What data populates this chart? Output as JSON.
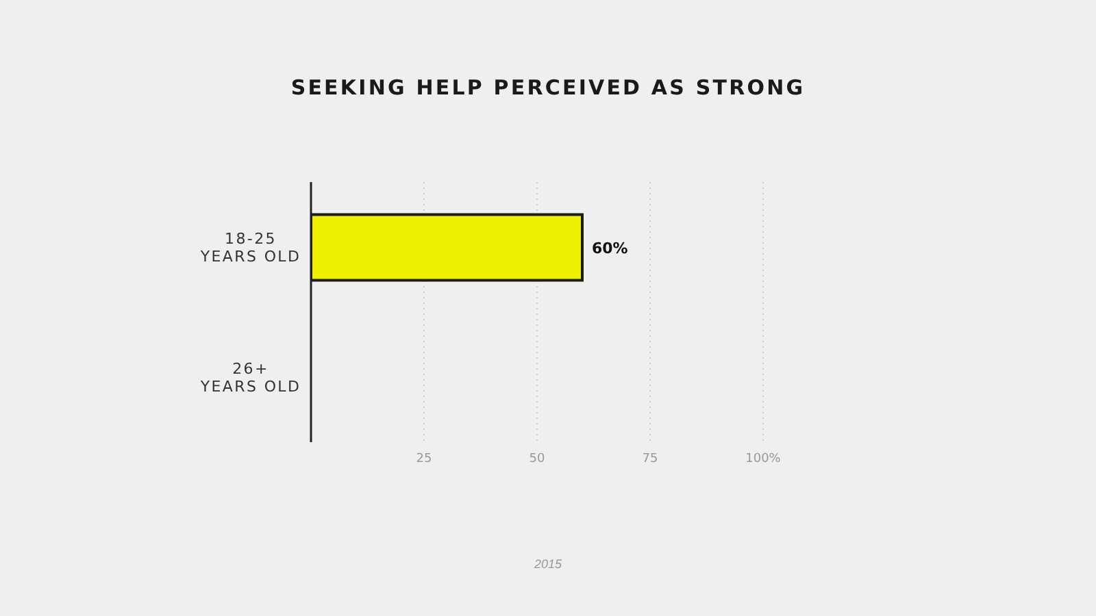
{
  "chart_data": {
    "type": "bar",
    "orientation": "horizontal",
    "title": "SEEKING HELP PERCEIVED AS STRONG",
    "categories": [
      "18-25\nYEARS OLD",
      "26+\nYEARS OLD"
    ],
    "values": [
      60,
      null
    ],
    "color": "#eef200",
    "value_labels": [
      "60%",
      null
    ],
    "xlim": [
      0,
      100
    ],
    "xticks": [
      25,
      50,
      75,
      {
        "value": 100,
        "label": "100%"
      }
    ],
    "grid": "x",
    "annotations": [
      "2015"
    ]
  }
}
